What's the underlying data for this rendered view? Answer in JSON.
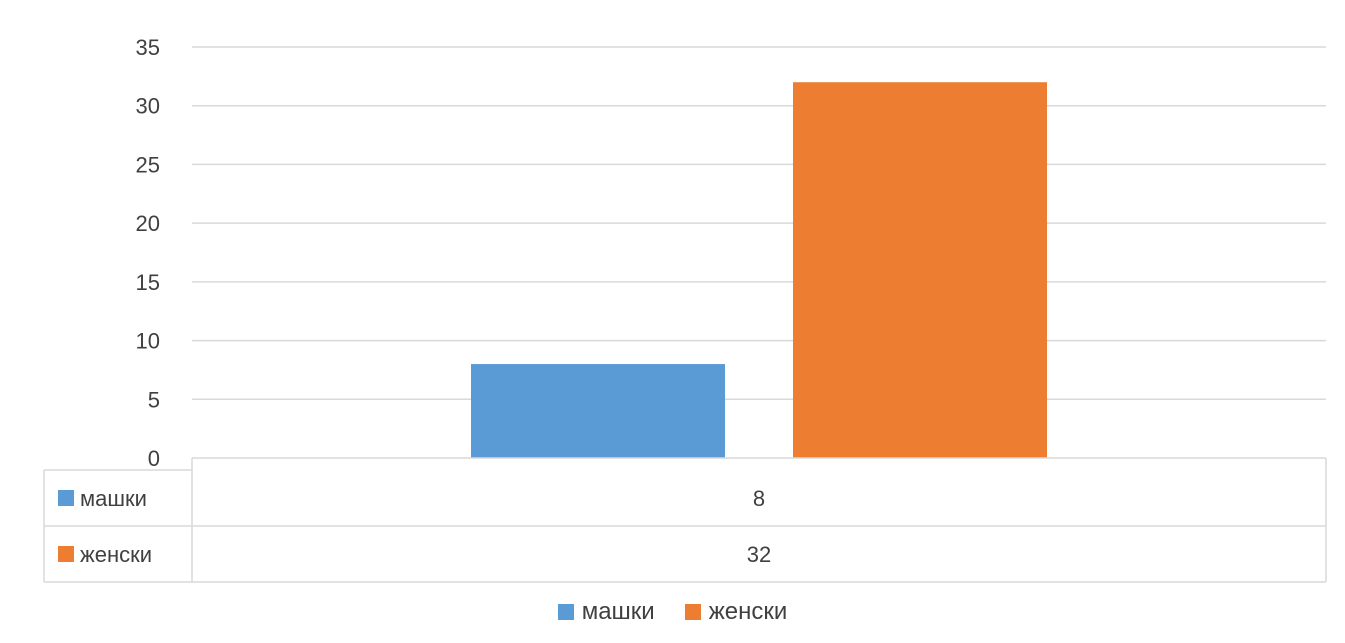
{
  "chart_data": {
    "type": "bar",
    "categories": [
      ""
    ],
    "series": [
      {
        "name": "машки",
        "values": [
          8
        ],
        "color": "#5B9BD5"
      },
      {
        "name": "женски",
        "values": [
          32
        ],
        "color": "#ED7D31"
      }
    ],
    "ylim": [
      0,
      35
    ],
    "yticks": [
      "0",
      "5",
      "10",
      "15",
      "20",
      "25",
      "30",
      "35"
    ],
    "grid": true,
    "data_table": true,
    "legend_position": "bottom"
  }
}
